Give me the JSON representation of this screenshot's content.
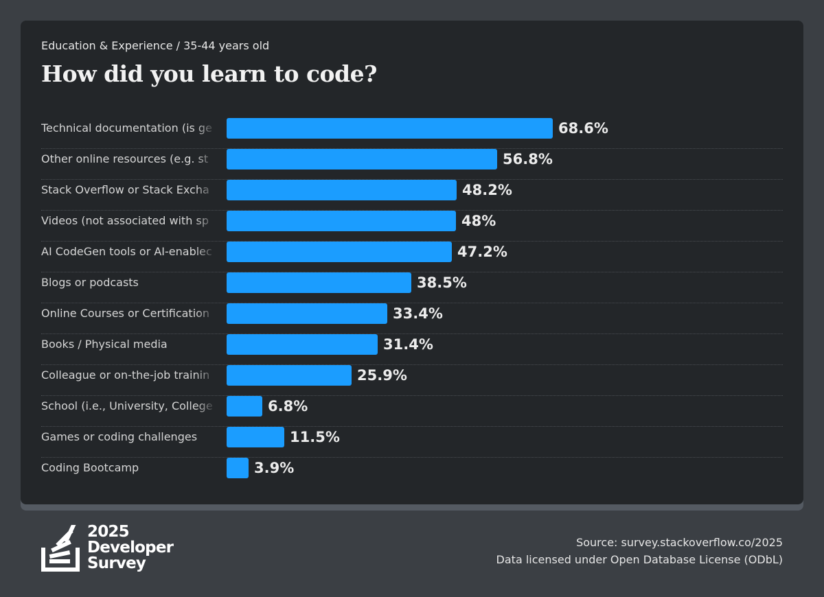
{
  "header": {
    "subtitle": "Education & Experience / 35-44 years old",
    "title": "How did you learn to code?"
  },
  "colors": {
    "bar": "#1b9dff",
    "card": "#232629",
    "background": "#3b3f44"
  },
  "chart_data": {
    "type": "bar",
    "orientation": "horizontal",
    "title": "How did you learn to code?",
    "subtitle": "Education & Experience / 35-44 years old",
    "xlabel": "",
    "ylabel": "",
    "xlim": [
      0,
      100
    ],
    "unit": "%",
    "categories": [
      "Technical documentation (is generated for/by the tool or system)",
      "Other online resources (e.g. standard search, forum, online community)",
      "Stack Overflow or Stack Exchange",
      "Videos (not associated with specific online course or certification)",
      "AI CodeGen tools or AI-enabled apps",
      "Blogs or podcasts",
      "Online Courses or Certification",
      "Books / Physical media",
      "Colleague or on-the-job training",
      "School (i.e., University, College, etc)",
      "Games or coding challenges",
      "Coding Bootcamp"
    ],
    "display_labels": [
      "Technical documentation (is ge",
      "Other online resources (e.g. st",
      "Stack Overflow or Stack Excha",
      "Videos (not associated with sp",
      "AI CodeGen tools or AI-enablec",
      "Blogs or podcasts",
      "Online Courses or Certification",
      "Books / Physical media",
      "Colleague or on-the-job trainin",
      "School (i.e., University, College",
      "Games or coding challenges",
      "Coding Bootcamp"
    ],
    "values": [
      68.6,
      56.8,
      48.2,
      48,
      47.2,
      38.5,
      33.4,
      31.4,
      25.9,
      6.8,
      11.5,
      3.9
    ],
    "value_labels": [
      "68.6%",
      "56.8%",
      "48.2%",
      "48%",
      "47.2%",
      "38.5%",
      "33.4%",
      "31.4%",
      "25.9%",
      "6.8%",
      "11.5%",
      "3.9%"
    ],
    "grid": false,
    "legend": "none"
  },
  "footer": {
    "logo_year": "2025",
    "logo_line1": "Developer",
    "logo_line2": "Survey",
    "source": "Source: survey.stackoverflow.co/2025",
    "license": "Data licensed under Open Database License (ODbL)"
  }
}
